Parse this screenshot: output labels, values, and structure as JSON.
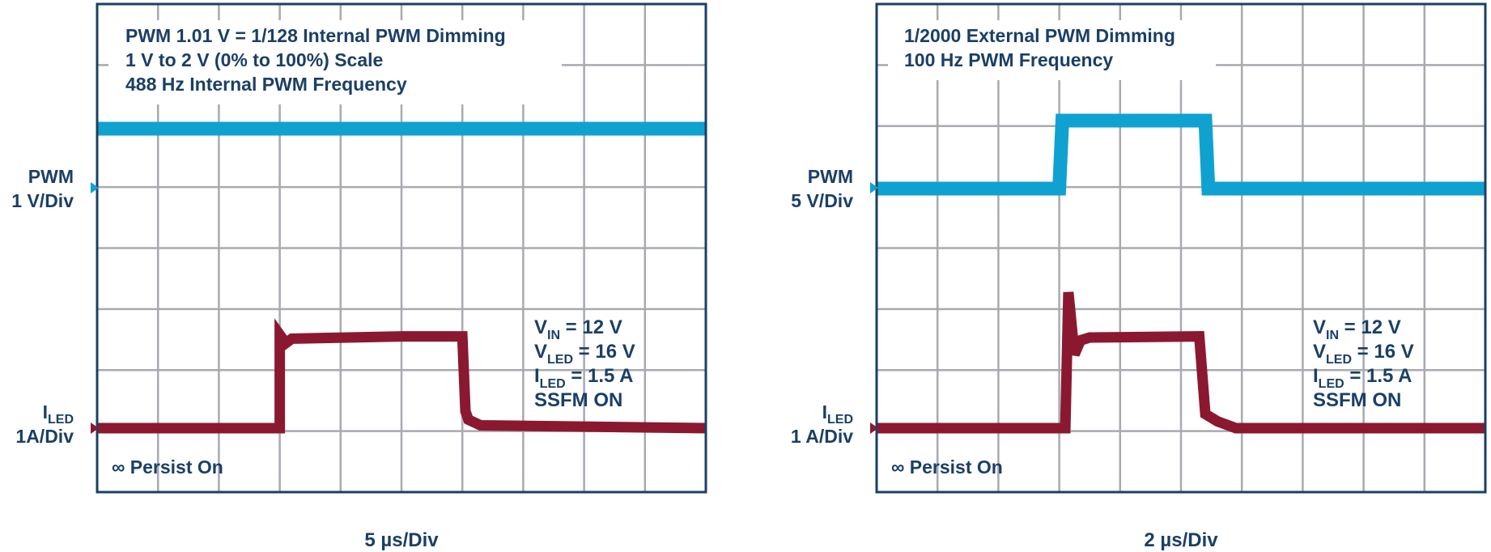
{
  "colors": {
    "pwm": "#0fa2d1",
    "iled": "#8a1930",
    "grid": "#a8aab1",
    "frame": "#1b3f66",
    "text": "#1b3f66"
  },
  "chart_data": [
    {
      "type": "line",
      "annotation_lines": [
        "PWM 1.01 V = 1/128 Internal PWM Dimming",
        "1 V to 2 V (0% to 100%) Scale",
        "488 Hz Internal PWM Frequency"
      ],
      "xlabel": "5 µs/Div",
      "grid": {
        "x_divisions": 10,
        "y_divisions": 8
      },
      "channels": [
        {
          "label": "PWM",
          "scale": "1 V/Div",
          "marker_color": "#0fa2d1"
        },
        {
          "label_main": "I",
          "label_sub": "LED",
          "scale": "1A/Div",
          "marker_color": "#8a1930"
        }
      ],
      "series": [
        {
          "channel": "PWM",
          "x": [
            0,
            10
          ],
          "y": [
            1.01,
            1.01
          ]
        },
        {
          "channel": "ILED",
          "x": [
            0,
            3.0,
            3.0,
            3.1,
            3.2,
            5.0,
            6.0,
            6.05,
            6.1,
            6.3,
            10
          ],
          "y": [
            0,
            0,
            1.65,
            1.5,
            1.58,
            1.62,
            1.62,
            0.3,
            0.15,
            0.05,
            0
          ]
        }
      ],
      "conditions": [
        {
          "main": "V",
          "sub": "IN",
          "rest": " = 12 V"
        },
        {
          "main": "V",
          "sub": "LED",
          "rest": " = 16 V"
        },
        {
          "main": "I",
          "sub": "LED",
          "rest": " = 1.5 A"
        },
        {
          "main": "SSFM ON",
          "sub": "",
          "rest": ""
        }
      ],
      "persist": "∞ Persist On"
    },
    {
      "type": "line",
      "annotation_lines": [
        "1/2000 External PWM Dimming",
        "100 Hz PWM Frequency"
      ],
      "xlabel": "2 µs/Div",
      "grid": {
        "x_divisions": 10,
        "y_divisions": 8
      },
      "channels": [
        {
          "label": "PWM",
          "scale": "5 V/Div",
          "marker_color": "#0fa2d1"
        },
        {
          "label_main": "I",
          "label_sub": "LED",
          "scale": "1 A/Div",
          "marker_color": "#8a1930"
        }
      ],
      "series": [
        {
          "channel": "PWM",
          "x": [
            0,
            3.0,
            3.05,
            5.4,
            5.45,
            10
          ],
          "y": [
            0,
            0,
            1.05,
            1.05,
            0,
            0
          ]
        },
        {
          "channel": "ILED",
          "x": [
            0,
            3.1,
            3.15,
            3.25,
            3.35,
            3.5,
            5.3,
            5.4,
            5.6,
            5.9,
            10
          ],
          "y": [
            0,
            0,
            2.4,
            1.3,
            1.55,
            1.6,
            1.62,
            0.25,
            0.12,
            0,
            0
          ]
        }
      ],
      "conditions": [
        {
          "main": "V",
          "sub": "IN",
          "rest": " = 12 V"
        },
        {
          "main": "V",
          "sub": "LED",
          "rest": " = 16 V"
        },
        {
          "main": "I",
          "sub": "LED",
          "rest": " = 1.5 A"
        },
        {
          "main": "SSFM ON",
          "sub": "",
          "rest": ""
        }
      ],
      "persist": "∞ Persist On"
    }
  ]
}
